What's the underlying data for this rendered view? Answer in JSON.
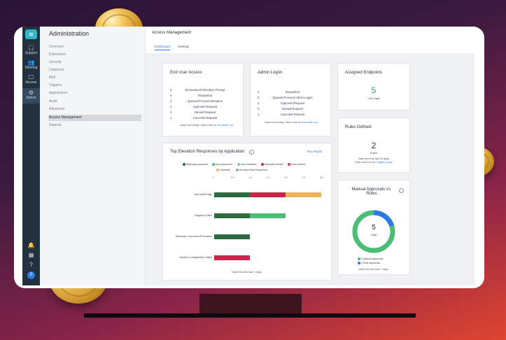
{
  "iconbar": {
    "logo": "≋",
    "items": [
      {
        "glyph": "🎧",
        "label": "Support"
      },
      {
        "glyph": "👥",
        "label": "Meeting"
      },
      {
        "glyph": "🖵",
        "label": "Access"
      },
      {
        "glyph": "⚙",
        "label": "Admin"
      }
    ],
    "avatar": "S"
  },
  "nav": {
    "title": "Administration",
    "items": [
      "Overview",
      "Extensions",
      "Security",
      "Database",
      "Mail",
      "Triggers",
      "Appearance",
      "Audit",
      "Advanced",
      "Access Management",
      "Reports"
    ],
    "selected": "Access Management"
  },
  "header": {
    "title": "Access Management",
    "tabs": [
      "Dashboard",
      "Settings"
    ],
    "active_tab": "Dashboard"
  },
  "end_user_access": {
    "title": "End User Access",
    "rows": [
      {
        "n": "3",
        "t": "Encountered Elevation Prompt"
      },
      {
        "n": "6",
        "t": "Requested"
      },
      {
        "n": "2",
        "t": "Queued Proceed Elevation"
      },
      {
        "n": "2",
        "t": "Approved Request"
      },
      {
        "n": "4",
        "t": "Denied Request"
      },
      {
        "n": "1",
        "t": "Canceled Request"
      }
    ],
    "footer": "Data from today. View more on",
    "footer_link": "the Audit Log"
  },
  "admin_logon": {
    "title": "Admin Logon",
    "rows": [
      {
        "n": "2",
        "t": "Requested"
      },
      {
        "n": "0",
        "t": "Queued Proceed Admin Logon"
      },
      {
        "n": "1",
        "t": "Approved Request"
      },
      {
        "n": "0",
        "t": "Denied Request"
      },
      {
        "n": "1",
        "t": "Canceled Request"
      }
    ],
    "footer": "Data from today. View more on",
    "footer_link": "the Audit Log"
  },
  "assigned_endpoints": {
    "title": "Assigned Endpoints",
    "value": "5",
    "label": "Live Data"
  },
  "rules_defined": {
    "title": "Rules Defined",
    "value": "2",
    "label": "Rules",
    "footer": "Data from the last 30 days",
    "footer2": "View more on the",
    "footer_link": "Triggers page"
  },
  "manual_approvals": {
    "title": "Manual Approvals vs. Rules",
    "value": "5",
    "label": "Total",
    "legend": [
      "4 Manual Approvals",
      "1 Rule Approvals"
    ],
    "footer": "Data from the last 7 days.",
    "colors": {
      "manual": "#4cbd74",
      "rule": "#2c7be5"
    }
  },
  "elevation": {
    "title": "Top Elevation Responses by Application",
    "run_report": "Run Report",
    "footer": "Data from the last 7 days.",
    "chart_data": {
      "type": "bar",
      "orientation": "horizontal",
      "stacked": true,
      "categories": [
        "Microsoft Edge",
        "Registry Editor",
        "Windows Command Processor",
        "System Configuration Utility"
      ],
      "xticks": [
        "0",
        "0.5",
        "1.0",
        "1.5",
        "2.0",
        "2.5",
        "3.0"
      ],
      "xlim": [
        0,
        3
      ],
      "series": [
        {
          "name": "Manually Approved",
          "color": "#2e6b3f",
          "values": [
            1,
            1,
            1,
            0
          ]
        },
        {
          "name": "Auto Approved",
          "color": "#4cbd74",
          "values": [
            0,
            1,
            0,
            0
          ]
        },
        {
          "name": "Auto Elevated",
          "color": "#7fd3a0",
          "values": [
            0,
            0,
            0,
            0
          ]
        },
        {
          "name": "Manually Denied",
          "color": "#c8264a",
          "values": [
            1,
            0,
            0,
            1
          ]
        },
        {
          "name": "Auto Denied",
          "color": "#e0344f",
          "values": [
            0,
            0,
            0,
            0
          ]
        },
        {
          "name": "Canceled",
          "color": "#eeb35d",
          "values": [
            1,
            0,
            0,
            0
          ]
        },
        {
          "name": "Elevation Not Requested",
          "color": "#9aa2ad",
          "values": [
            0,
            0,
            0,
            0
          ]
        }
      ]
    }
  }
}
